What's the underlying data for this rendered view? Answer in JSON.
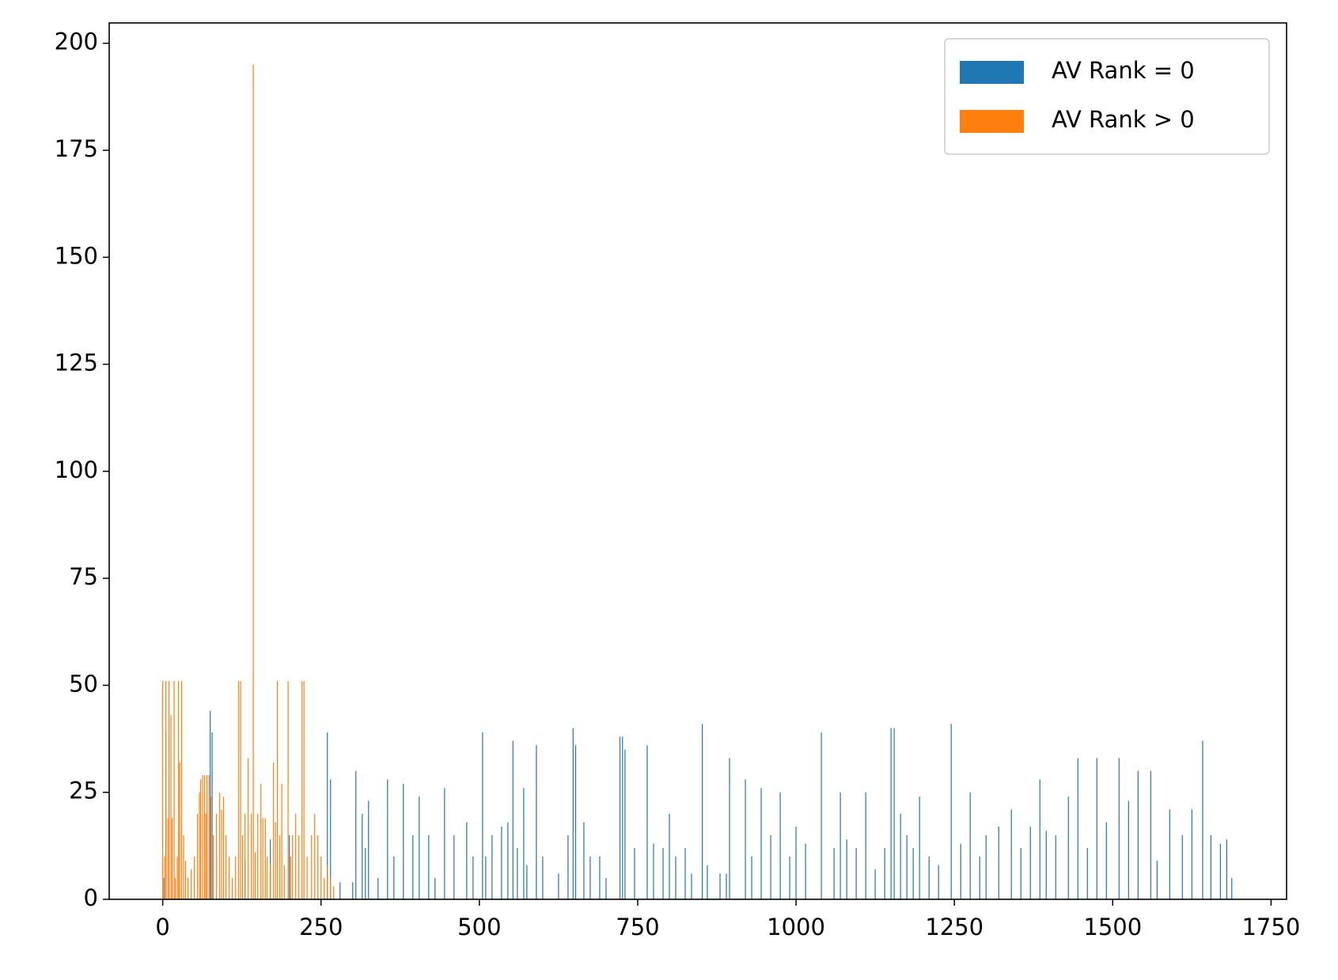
{
  "chart_data": {
    "type": "bar",
    "series": [
      {
        "name": "AV Rank = 0",
        "color": "#1f77b4",
        "x": [
          2,
          5,
          75,
          78,
          130,
          170,
          200,
          260,
          265,
          280,
          300,
          305,
          315,
          320,
          325,
          340,
          355,
          365,
          380,
          395,
          405,
          420,
          430,
          445,
          460,
          480,
          490,
          505,
          510,
          520,
          535,
          545,
          553,
          560,
          570,
          575,
          590,
          600,
          625,
          640,
          648,
          652,
          665,
          675,
          690,
          700,
          722,
          726,
          730,
          745,
          765,
          775,
          790,
          800,
          810,
          825,
          835,
          852,
          860,
          880,
          890,
          895,
          920,
          930,
          945,
          960,
          975,
          990,
          1000,
          1015,
          1040,
          1060,
          1070,
          1080,
          1095,
          1110,
          1125,
          1140,
          1150,
          1155,
          1165,
          1175,
          1185,
          1195,
          1210,
          1225,
          1245,
          1260,
          1275,
          1290,
          1300,
          1320,
          1340,
          1355,
          1370,
          1385,
          1395,
          1410,
          1430,
          1445,
          1460,
          1475,
          1490,
          1510,
          1525,
          1540,
          1560,
          1570,
          1590,
          1610,
          1625,
          1642,
          1655,
          1670,
          1680,
          1688
        ],
        "values": [
          5,
          39,
          44,
          39,
          9,
          14,
          15,
          39,
          28,
          4,
          4,
          30,
          20,
          12,
          23,
          5,
          28,
          10,
          27,
          15,
          24,
          15,
          5,
          26,
          15,
          18,
          10,
          39,
          10,
          15,
          17,
          18,
          37,
          12,
          26,
          8,
          36,
          10,
          6,
          15,
          40,
          36,
          18,
          10,
          10,
          5,
          38,
          38,
          35,
          12,
          36,
          13,
          12,
          20,
          10,
          12,
          6,
          41,
          8,
          6,
          6,
          33,
          28,
          10,
          26,
          15,
          25,
          10,
          17,
          13,
          39,
          12,
          25,
          14,
          12,
          25,
          7,
          12,
          40,
          40,
          20,
          15,
          12,
          24,
          10,
          8,
          41,
          13,
          25,
          10,
          15,
          17,
          21,
          12,
          17,
          28,
          16,
          15,
          24,
          33,
          12,
          33,
          18,
          33,
          23,
          30,
          30,
          9,
          21,
          15,
          21,
          37,
          15,
          13,
          14,
          5
        ]
      },
      {
        "name": "AV Rank > 0",
        "color": "#ff7f0e",
        "x": [
          0,
          3,
          5,
          8,
          10,
          13,
          15,
          18,
          20,
          23,
          25,
          27,
          30,
          33,
          36,
          40,
          45,
          50,
          55,
          58,
          60,
          63,
          66,
          68,
          70,
          73,
          76,
          80,
          85,
          90,
          93,
          96,
          100,
          105,
          110,
          115,
          120,
          123,
          126,
          130,
          135,
          140,
          143,
          146,
          150,
          155,
          158,
          162,
          165,
          170,
          175,
          178,
          181,
          185,
          188,
          192,
          198,
          202,
          205,
          210,
          215,
          220,
          223,
          228,
          235,
          240,
          245,
          250,
          255,
          260,
          265,
          270
        ],
        "values": [
          51,
          10,
          51,
          19,
          51,
          43,
          19,
          51,
          5,
          10,
          51,
          32,
          51,
          15,
          9,
          5,
          7,
          10,
          20,
          25,
          28,
          29,
          29,
          20,
          29,
          29,
          24,
          15,
          20,
          25,
          21,
          24,
          15,
          10,
          5,
          10,
          51,
          51,
          15,
          20,
          33,
          20,
          195,
          11,
          20,
          27,
          19,
          19,
          10,
          8,
          32,
          18,
          51,
          15,
          27,
          8,
          51,
          10,
          15,
          20,
          15,
          51,
          51,
          10,
          15,
          20,
          15,
          10,
          5,
          8,
          5,
          3
        ]
      }
    ],
    "xlim": [
      -84.5,
      1774.5
    ],
    "xticks": [
      0,
      250,
      500,
      750,
      1000,
      1250,
      1500,
      1750
    ],
    "ylim": [
      0,
      204.75
    ],
    "yticks": [
      0,
      25,
      50,
      75,
      100,
      125,
      150,
      175,
      200
    ],
    "legend": "upper right"
  }
}
